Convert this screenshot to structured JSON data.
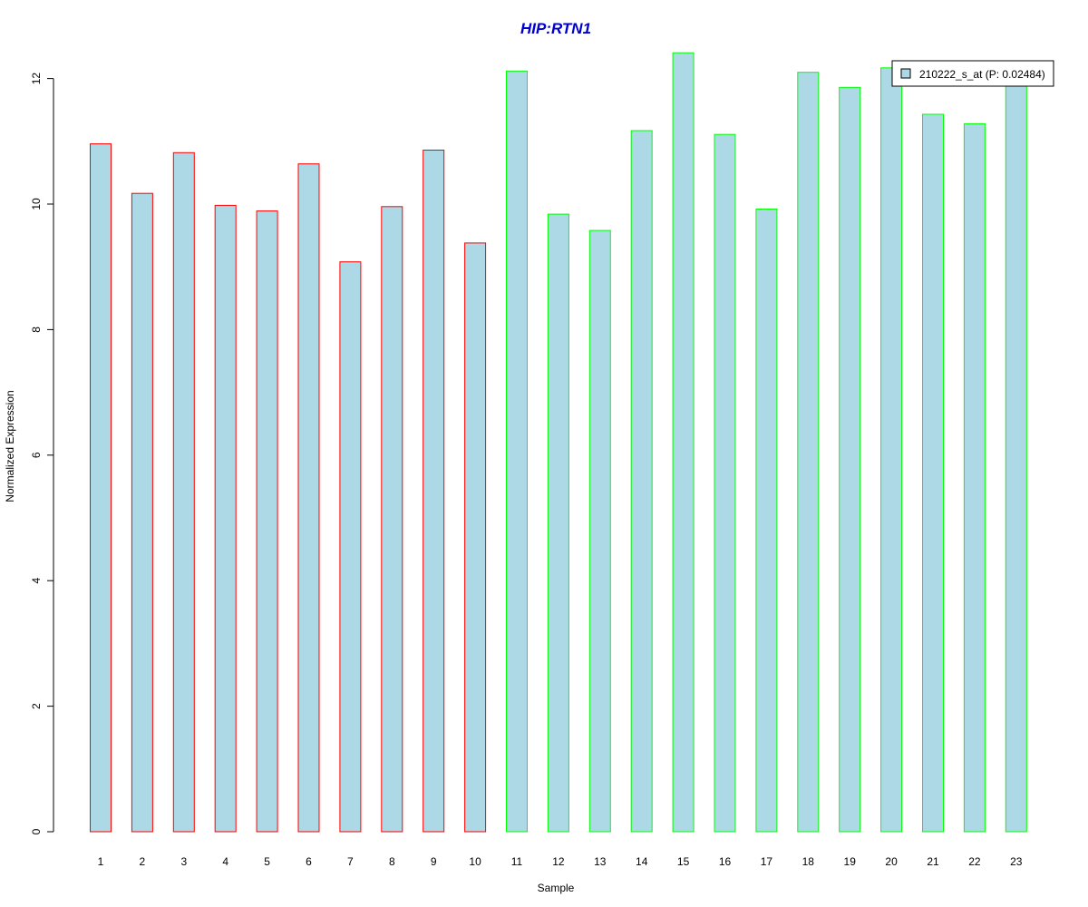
{
  "chart_data": {
    "type": "bar",
    "title": "HIP:RTN1",
    "xlabel": "Sample",
    "ylabel": "Normalized Expression",
    "categories": [
      "1",
      "2",
      "3",
      "4",
      "5",
      "6",
      "7",
      "8",
      "9",
      "10",
      "11",
      "12",
      "13",
      "14",
      "15",
      "16",
      "17",
      "18",
      "19",
      "20",
      "21",
      "22",
      "23"
    ],
    "series": [
      {
        "name": "210222_s_at (P: 0.02484)",
        "values": [
          10.96,
          10.17,
          10.82,
          9.98,
          9.89,
          10.64,
          9.08,
          9.96,
          10.86,
          9.38,
          12.12,
          9.84,
          9.58,
          11.17,
          12.41,
          11.11,
          9.92,
          12.1,
          11.86,
          12.17,
          11.43,
          11.28,
          11.91
        ]
      }
    ],
    "groups": [
      {
        "samples": [
          "1",
          "2",
          "3",
          "4",
          "5",
          "6",
          "7",
          "8",
          "9",
          "10"
        ],
        "border_color": "#ff0000"
      },
      {
        "samples": [
          "11",
          "12",
          "13",
          "14",
          "15",
          "16",
          "17",
          "18",
          "19",
          "20",
          "21",
          "22",
          "23"
        ],
        "border_color": "#00ff00"
      }
    ],
    "ylim": [
      0,
      12.4
    ],
    "yticks": [
      0,
      2,
      4,
      6,
      8,
      10,
      12
    ],
    "grid": false,
    "legend_position": "top-right",
    "colors": {
      "bar_fill": "#add8e6",
      "title": "#0000cd",
      "axis": "#000000"
    }
  }
}
